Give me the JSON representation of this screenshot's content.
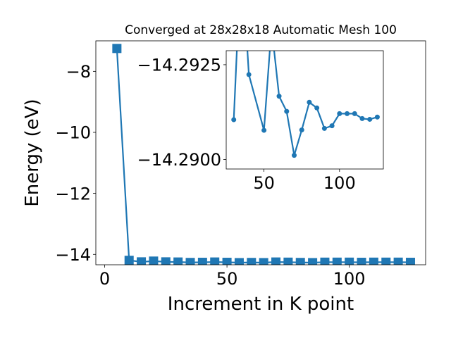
{
  "chart_data": [
    {
      "type": "line",
      "title": "Converged at 28x28x18 Automatic Mesh 100",
      "xlabel": "Increment in K point",
      "ylabel": "Energy (eV)",
      "xlim": [
        -3.6,
        131.2
      ],
      "ylim": [
        -14.34,
        -7.0
      ],
      "xticks": [
        0,
        50,
        100
      ],
      "xtick_labels": [
        "0",
        "50",
        "100"
      ],
      "yticks": [
        -8,
        -10,
        -12,
        -14
      ],
      "ytick_labels": [
        "−8",
        "−10",
        "−12",
        "−14"
      ],
      "grid": false,
      "marker": "square",
      "color": "#1f77b4",
      "series": [
        {
          "x": [
            5,
            10,
            15,
            20,
            25,
            30,
            35,
            40,
            45,
            50,
            55,
            60,
            65,
            70,
            75,
            80,
            85,
            90,
            95,
            100,
            105,
            110,
            115,
            120,
            125
          ],
          "y": [
            -7.25,
            -14.195,
            -14.245,
            -14.22,
            -14.245,
            -14.25,
            -14.265,
            -14.26,
            -14.25,
            -14.26,
            -14.27,
            -14.265,
            -14.27,
            -14.25,
            -14.255,
            -14.265,
            -14.27,
            -14.255,
            -14.255,
            -14.255,
            -14.26,
            -14.255,
            -14.255,
            -14.255,
            -14.26
          ]
        }
      ]
    },
    {
      "type": "line",
      "title": "",
      "xlabel": "",
      "ylabel": "",
      "xlim": [
        25.0,
        129.0
      ],
      "ylim": [
        -14.28975,
        -14.29287
      ],
      "xticks": [
        50,
        100
      ],
      "xtick_labels": [
        "50",
        "100"
      ],
      "yticks": [
        -14.2925,
        -14.29
      ],
      "ytick_labels": [
        "−14.2925",
        "−14.2900"
      ],
      "grid": false,
      "marker": "circle",
      "color": "#1f77b4",
      "series": [
        {
          "x": [
            30,
            35,
            40,
            50,
            55,
            60,
            65,
            70,
            75,
            80,
            85,
            90,
            95,
            100,
            105,
            110,
            115,
            120,
            125
          ],
          "y": [
            -14.29105,
            -14.2955,
            -14.29224,
            -14.29077,
            -14.2935,
            -14.29167,
            -14.29127,
            -14.29011,
            -14.29078,
            -14.29151,
            -14.29136,
            -14.29082,
            -14.29089,
            -14.29121,
            -14.29121,
            -14.29121,
            -14.29108,
            -14.29106,
            -14.29112
          ]
        }
      ]
    }
  ]
}
